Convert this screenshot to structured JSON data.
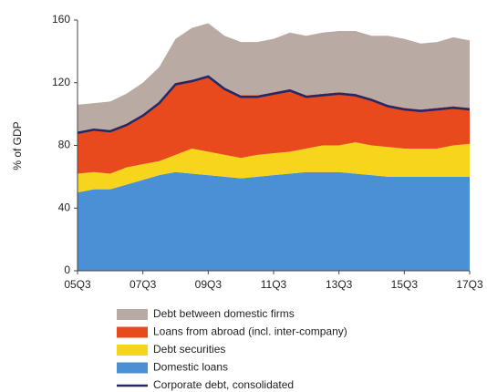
{
  "chart_data": {
    "type": "stacked-area",
    "y_label": "% of GDP",
    "categories": [
      "05Q3",
      null,
      null,
      null,
      "07Q3",
      null,
      null,
      null,
      "09Q3",
      null,
      null,
      null,
      "11Q3",
      null,
      null,
      null,
      "13Q3",
      null,
      null,
      null,
      "15Q3",
      null,
      null,
      null,
      "17Q3"
    ],
    "ylim": [
      0,
      160
    ],
    "yticks": [
      0,
      40,
      80,
      120,
      160
    ],
    "series": [
      {
        "name": "Domestic loans",
        "type": "area",
        "color": "#4a90d4",
        "values": [
          50,
          52,
          52,
          55,
          58,
          61,
          63,
          62,
          61,
          60,
          59,
          60,
          61,
          62,
          63,
          63,
          63,
          62,
          61,
          60,
          60,
          60,
          60,
          60,
          60
        ]
      },
      {
        "name": "Debt securities",
        "type": "area",
        "color": "#f7d51d",
        "values": [
          12,
          11,
          10,
          11,
          10,
          9,
          11,
          16,
          15,
          14,
          13,
          14,
          14,
          14,
          15,
          17,
          17,
          20,
          19,
          19,
          18,
          18,
          18,
          20,
          21
        ]
      },
      {
        "name": "Loans from abroad (incl. inter-company)",
        "type": "area",
        "color": "#e8491d",
        "values": [
          27,
          27,
          28,
          28,
          32,
          38,
          46,
          44,
          48,
          43,
          40,
          38,
          39,
          40,
          34,
          33,
          34,
          31,
          30,
          27,
          26,
          25,
          26,
          25,
          23
        ]
      },
      {
        "name": "Debt between domestic firms",
        "type": "area",
        "color": "#b9aaa4",
        "values": [
          17,
          17,
          18,
          19,
          20,
          22,
          28,
          33,
          34,
          33,
          34,
          34,
          34,
          36,
          38,
          39,
          39,
          40,
          40,
          44,
          44,
          42,
          42,
          44,
          43
        ]
      },
      {
        "name": "Corporate debt, consolidated",
        "type": "line",
        "color": "#1f2a6b",
        "values": [
          88,
          90,
          89,
          93,
          99,
          107,
          119,
          121,
          124,
          116,
          111,
          111,
          113,
          115,
          111,
          112,
          113,
          112,
          109,
          105,
          103,
          102,
          103,
          104,
          103
        ]
      }
    ]
  }
}
